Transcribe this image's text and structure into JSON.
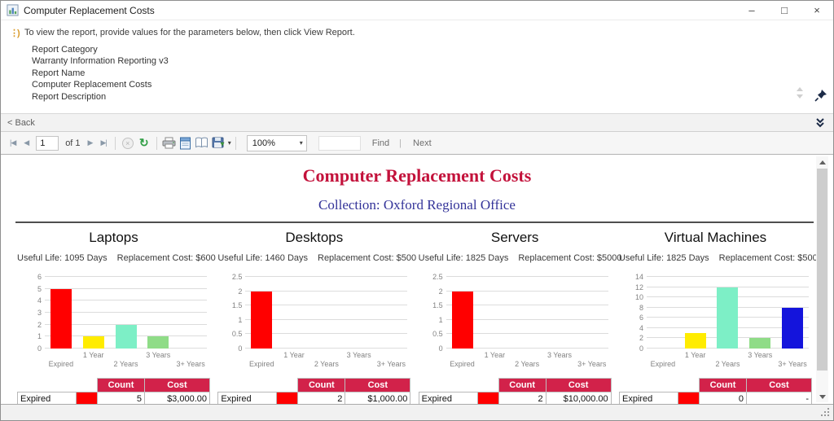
{
  "window": {
    "title": "Computer Replacement Costs",
    "minimize": "–",
    "maximize": "□",
    "close": "×"
  },
  "parameters_panel": {
    "message": "To view the report, provide values for the parameters below, then click View Report.",
    "lines": [
      "Report Category",
      "Warranty Information Reporting v3",
      "Report Name",
      "Computer Replacement Costs",
      "Report Description"
    ]
  },
  "navigation": {
    "back_label": "< Back"
  },
  "toolbar": {
    "page_number": "1",
    "of_label": "of 1",
    "zoom_value": "100%",
    "find_label": "Find",
    "find_next_separator": "|",
    "next_label": "Next",
    "icons": {
      "first_page": "|◀",
      "prev_page": "◀",
      "next_page": "▶",
      "last_page": "▶|",
      "stop": "×",
      "refresh": "↻",
      "zoom_caret": "▾",
      "export_caret": "▾"
    }
  },
  "report": {
    "title": "Computer Replacement Costs",
    "subtitle": "Collection: Oxford Regional Office",
    "title_color": "#C3123B",
    "subtitle_color": "#333399",
    "table_header_color": "#D2224A"
  },
  "chart_data": [
    {
      "type": "bar",
      "title": "Laptops",
      "useful_life": "Useful Life: 1095 Days",
      "replacement_cost": "Replacement Cost: $600",
      "categories": [
        "Expired",
        "1 Year",
        "2 Years",
        "3 Years",
        "3+ Years"
      ],
      "values": [
        5,
        1,
        2,
        1,
        0
      ],
      "colors": [
        "#ff0000",
        "#ffec00",
        "#7defc6",
        "#8fdc87",
        "#1414dc"
      ],
      "ylim": [
        0,
        6
      ],
      "yticks": [
        0,
        1,
        2,
        3,
        4,
        5,
        6
      ],
      "grid": true,
      "table": {
        "headers": [
          "Count",
          "Cost"
        ],
        "rows": [
          {
            "label": "Expired",
            "swatch": "#ff0000",
            "count": "5",
            "cost": "$3,000.00"
          }
        ],
        "next_row_swatch": "#ffec00"
      }
    },
    {
      "type": "bar",
      "title": "Desktops",
      "useful_life": "Useful Life: 1460 Days",
      "replacement_cost": "Replacement Cost: $500",
      "categories": [
        "Expired",
        "1 Year",
        "2 Years",
        "3 Years",
        "3+ Years"
      ],
      "values": [
        2,
        0,
        0,
        0,
        0
      ],
      "colors": [
        "#ff0000",
        "#ffec00",
        "#7defc6",
        "#8fdc87",
        "#1414dc"
      ],
      "ylim": [
        0,
        2.5
      ],
      "yticks": [
        0,
        0.5,
        1,
        1.5,
        2,
        2.5
      ],
      "grid": true,
      "table": {
        "headers": [
          "Count",
          "Cost"
        ],
        "rows": [
          {
            "label": "Expired",
            "swatch": "#ff0000",
            "count": "2",
            "cost": "$1,000.00"
          }
        ],
        "next_row_swatch": "#ffec00"
      }
    },
    {
      "type": "bar",
      "title": "Servers",
      "useful_life": "Useful Life: 1825 Days",
      "replacement_cost": "Replacement Cost: $5000",
      "categories": [
        "Expired",
        "1 Year",
        "2 Years",
        "3 Years",
        "3+ Years"
      ],
      "values": [
        2,
        0,
        0,
        0,
        0
      ],
      "colors": [
        "#ff0000",
        "#ffec00",
        "#7defc6",
        "#8fdc87",
        "#1414dc"
      ],
      "ylim": [
        0,
        2.5
      ],
      "yticks": [
        0,
        0.5,
        1,
        1.5,
        2,
        2.5
      ],
      "grid": true,
      "table": {
        "headers": [
          "Count",
          "Cost"
        ],
        "rows": [
          {
            "label": "Expired",
            "swatch": "#ff0000",
            "count": "2",
            "cost": "$10,000.00"
          }
        ],
        "next_row_swatch": "#ffec00"
      }
    },
    {
      "type": "bar",
      "title": "Virtual Machines",
      "useful_life": "Useful Life: 1825 Days",
      "replacement_cost": "Replacement Cost: $500",
      "categories": [
        "Expired",
        "1 Year",
        "2 Years",
        "3 Years",
        "3+ Years"
      ],
      "values": [
        0,
        3,
        12,
        2,
        8
      ],
      "colors": [
        "#ff0000",
        "#ffec00",
        "#7defc6",
        "#8fdc87",
        "#1414dc"
      ],
      "ylim": [
        0,
        14
      ],
      "yticks": [
        0,
        2,
        4,
        6,
        8,
        10,
        12,
        14
      ],
      "grid": true,
      "table": {
        "headers": [
          "Count",
          "Cost"
        ],
        "rows": [
          {
            "label": "Expired",
            "swatch": "#ff0000",
            "count": "0",
            "cost": "-"
          }
        ],
        "next_row_swatch": "#ffec00"
      }
    }
  ]
}
